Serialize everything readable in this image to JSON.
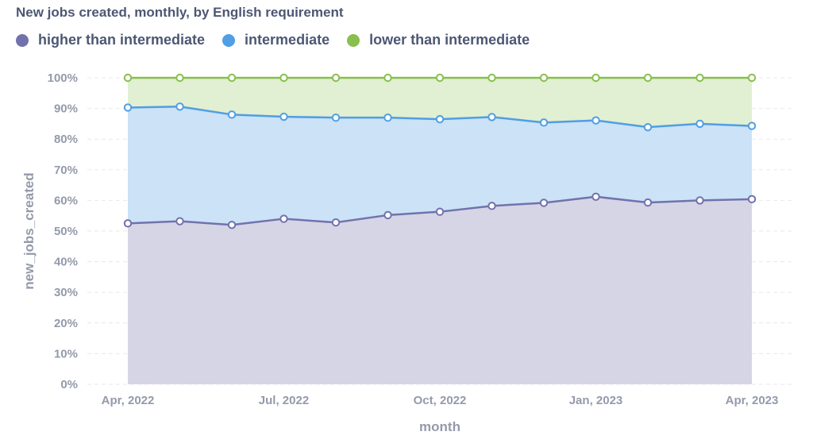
{
  "chart_data": {
    "type": "area",
    "stacked": "percent",
    "title": "New jobs created, monthly, by English requirement",
    "xlabel": "month",
    "ylabel": "new_jobs_created",
    "x": [
      "Apr, 2022",
      "May, 2022",
      "Jun, 2022",
      "Jul, 2022",
      "Aug, 2022",
      "Sep, 2022",
      "Oct, 2022",
      "Nov, 2022",
      "Dec, 2022",
      "Jan, 2023",
      "Feb, 2023",
      "Mar, 2023",
      "Apr, 2023"
    ],
    "x_tick_labels": [
      "Apr, 2022",
      "Jul, 2022",
      "Oct, 2022",
      "Jan, 2023",
      "Apr, 2023"
    ],
    "y_tick_labels": [
      "0%",
      "10%",
      "20%",
      "30%",
      "40%",
      "50%",
      "60%",
      "70%",
      "80%",
      "90%",
      "100%"
    ],
    "ylim": [
      0,
      100
    ],
    "grid": "horizontal dashed",
    "legend_position": "top-left",
    "series": [
      {
        "name": "higher than intermediate",
        "color": "#7172ad",
        "fill": "#d6d5e6",
        "cumulative_percent": [
          52.5,
          53.2,
          52.0,
          54.0,
          52.8,
          55.2,
          56.3,
          58.2,
          59.2,
          61.2,
          59.3,
          60.0,
          60.4
        ]
      },
      {
        "name": "intermediate",
        "color": "#509ee3",
        "fill": "#cbe2f7",
        "cumulative_percent": [
          90.3,
          90.6,
          88.0,
          87.3,
          87.0,
          87.0,
          86.5,
          87.2,
          85.4,
          86.1,
          83.9,
          85.0,
          84.3
        ]
      },
      {
        "name": "lower than intermediate",
        "color": "#88bf4d",
        "fill": "#e1efd2",
        "cumulative_percent": [
          100,
          100,
          100,
          100,
          100,
          100,
          100,
          100,
          100,
          100,
          100,
          100,
          100
        ]
      }
    ]
  }
}
